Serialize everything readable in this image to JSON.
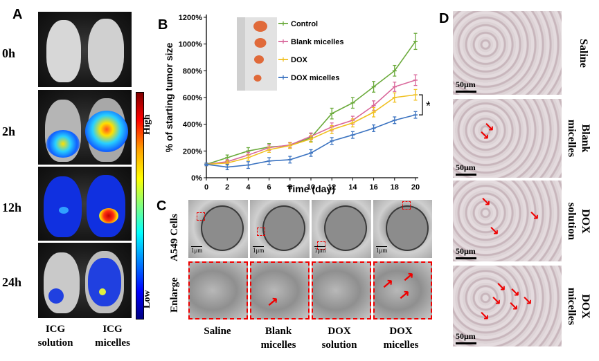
{
  "panels": {
    "a": "A",
    "b": "B",
    "c": "C",
    "d": "D"
  },
  "panel_a": {
    "times": [
      "0h",
      "2h",
      "12h",
      "24h"
    ],
    "colorbar": {
      "high": "High",
      "low": "Low"
    },
    "columns": [
      {
        "line1": "ICG",
        "line2": "solution"
      },
      {
        "line1": "ICG",
        "line2": "micelles"
      }
    ]
  },
  "panel_c": {
    "row_labels": [
      "A549 Cells",
      "Enlarge"
    ],
    "scale_bar": "1μm",
    "columns": [
      {
        "line1": "Saline",
        "line2": ""
      },
      {
        "line1": "Blank",
        "line2": "micelles"
      },
      {
        "line1": "DOX",
        "line2": "solution"
      },
      {
        "line1": "DOX",
        "line2": "micelles"
      }
    ]
  },
  "panel_d": {
    "scale_bar": "50μm",
    "labels": [
      {
        "line1": "Saline",
        "line2": ""
      },
      {
        "line1": "Blank",
        "line2": "micelles"
      },
      {
        "line1": "DOX",
        "line2": "solution"
      },
      {
        "line1": "DOX",
        "line2": "micelles"
      }
    ]
  },
  "chart_data": {
    "type": "line",
    "xlabel": "Time (day)",
    "ylabel": "% of starting tumor size",
    "x": [
      0,
      2,
      4,
      6,
      8,
      10,
      12,
      14,
      16,
      18,
      20
    ],
    "xlim": [
      0,
      20
    ],
    "ylim": [
      0,
      1200
    ],
    "xticks": [
      "0",
      "2",
      "4",
      "6",
      "8",
      "10",
      "12",
      "14",
      "16",
      "18",
      "20"
    ],
    "yticks": [
      "0%",
      "200%",
      "400%",
      "600%",
      "800%",
      "1000%",
      "1200%"
    ],
    "significance": "*",
    "legend_position": "top-right",
    "series": [
      {
        "name": "Control",
        "color": "#6aaa3a",
        "values": [
          100,
          150,
          200,
          230,
          240,
          300,
          480,
          560,
          680,
          800,
          1020
        ],
        "errors": [
          10,
          20,
          25,
          25,
          20,
          30,
          40,
          40,
          40,
          40,
          60
        ]
      },
      {
        "name": "Blank micelles",
        "color": "#d9669a",
        "values": [
          100,
          120,
          170,
          225,
          245,
          310,
          380,
          430,
          540,
          680,
          730
        ],
        "errors": [
          10,
          15,
          20,
          20,
          20,
          25,
          30,
          30,
          35,
          35,
          40
        ]
      },
      {
        "name": "DOX",
        "color": "#f0c020",
        "values": [
          100,
          110,
          150,
          210,
          240,
          290,
          360,
          410,
          490,
          600,
          620
        ],
        "errors": [
          10,
          15,
          20,
          20,
          20,
          25,
          30,
          30,
          35,
          35,
          40
        ]
      },
      {
        "name": "DOX micelles",
        "color": "#3a72c0",
        "values": [
          100,
          80,
          95,
          125,
          135,
          185,
          275,
          320,
          370,
          430,
          470
        ],
        "errors": [
          10,
          20,
          25,
          25,
          25,
          25,
          25,
          25,
          25,
          25,
          25
        ]
      }
    ]
  }
}
